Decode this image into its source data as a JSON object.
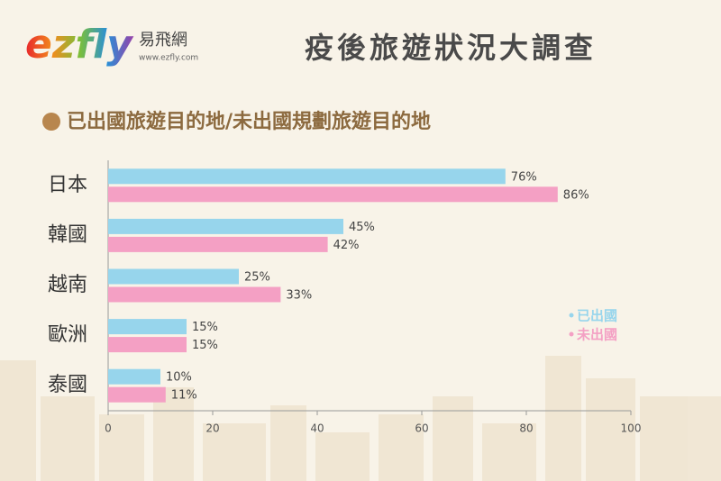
{
  "logo": {
    "text": "ezfly",
    "name": "易飛網",
    "url": "www.ezfly.com"
  },
  "chart_data": {
    "type": "bar",
    "orientation": "horizontal",
    "title": "疫後旅遊狀況大調查",
    "subtitle": "已出國旅遊目的地/未出國規劃旅遊目的地",
    "categories": [
      "日本",
      "韓國",
      "越南",
      "歐洲",
      "泰國"
    ],
    "series": [
      {
        "name": "已出國",
        "color": "#97d5ec",
        "values": [
          76,
          45,
          25,
          15,
          10
        ],
        "value_labels": [
          "76%",
          "45%",
          "25%",
          "15%",
          "10%"
        ]
      },
      {
        "name": "未出國",
        "color": "#f4a0c4",
        "values": [
          86,
          42,
          33,
          15,
          11
        ],
        "value_labels": [
          "86%",
          "42%",
          "33%",
          "15%",
          "11%"
        ]
      }
    ],
    "xlim": [
      0,
      100
    ],
    "xticks": [
      0,
      20,
      40,
      60,
      80,
      100
    ],
    "legend": "right"
  }
}
